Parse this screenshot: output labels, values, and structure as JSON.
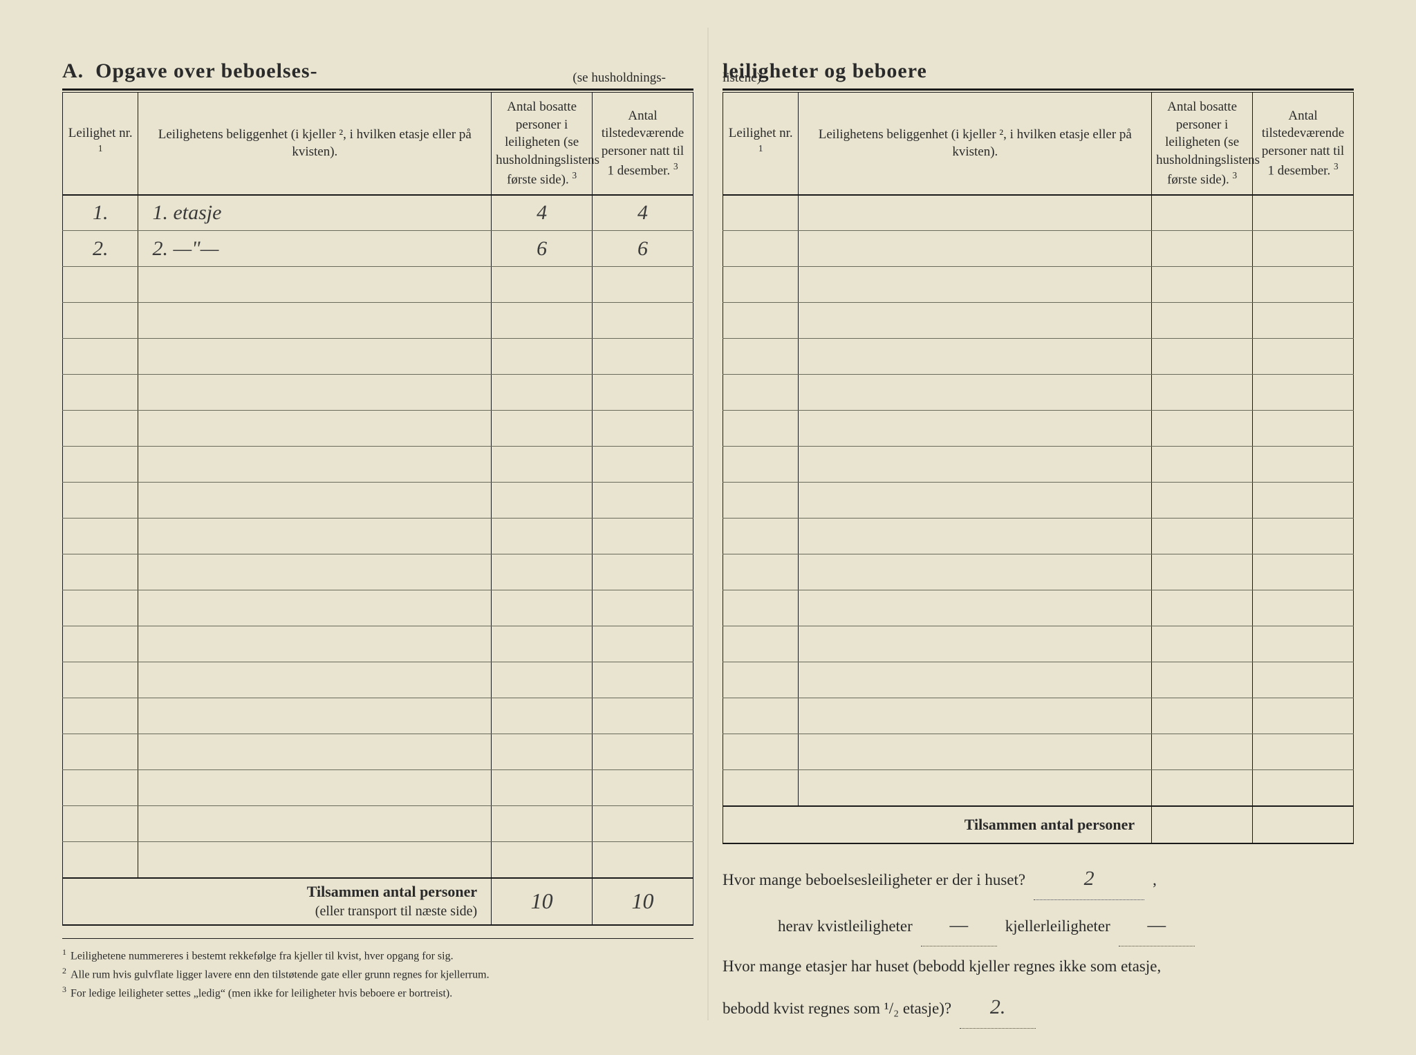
{
  "left": {
    "title_prefix": "A.",
    "title_main": "Opgave over beboelses-",
    "title_sub": "(se husholdnings-",
    "columns": {
      "nr": "Leilighet nr.",
      "nr_sup": "1",
      "loc": "Leilighetens beliggenhet (i kjeller ², i hvilken etasje eller på kvisten).",
      "p1": "Antal bosatte personer i leiligheten (se husholdningslistens første side).",
      "p1_sup": "3",
      "p2": "Antal tilstedeværende personer natt til 1 desember.",
      "p2_sup": "3"
    },
    "rows": [
      {
        "nr": "1.",
        "loc": "1. etasje",
        "p1": "4",
        "p2": "4"
      },
      {
        "nr": "2.",
        "loc": "2.  —\"—",
        "p1": "6",
        "p2": "6"
      }
    ],
    "blank_row_count": 17,
    "totals_label_bold": "Tilsammen antal personer",
    "totals_label_sub": "(eller transport til næste side)",
    "totals_p1": "10",
    "totals_p2": "10",
    "footnotes": [
      "Leilighetene nummereres i bestemt rekkefølge fra kjeller til kvist, hver opgang for sig.",
      "Alle rum hvis gulvflate ligger lavere enn den tilstøtende gate eller grunn regnes for kjellerrum.",
      "For ledige leiligheter settes „ledig“ (men ikke for leiligheter hvis beboere er bortreist)."
    ]
  },
  "right": {
    "title_main": "leiligheter og beboere",
    "title_sub": "listene).",
    "columns": {
      "nr": "Leilighet nr.",
      "nr_sup": "1",
      "loc": "Leilighetens beliggenhet (i kjeller ², i hvilken etasje eller på kvisten).",
      "p1": "Antal bosatte personer i leiligheten (se husholdningslistens første side).",
      "p1_sup": "3",
      "p2": "Antal tilstedeværende personer natt til 1 desember.",
      "p2_sup": "3"
    },
    "blank_row_count": 17,
    "totals_label": "Tilsammen antal personer",
    "q1_a": "Hvor mange beboelsesleiligheter er der i huset?",
    "q1_val": "2",
    "q1_tail": ",",
    "q2_a": "herav kvistleiligheter",
    "q2_val1": "—",
    "q2_b": "kjellerleiligheter",
    "q2_val2": "—",
    "q3_a": "Hvor mange etasjer har huset (bebodd kjeller regnes ikke som etasje,",
    "q3_b": "bebodd kvist regnes som ¹/₂ etasje)?",
    "q3_val": "2."
  }
}
